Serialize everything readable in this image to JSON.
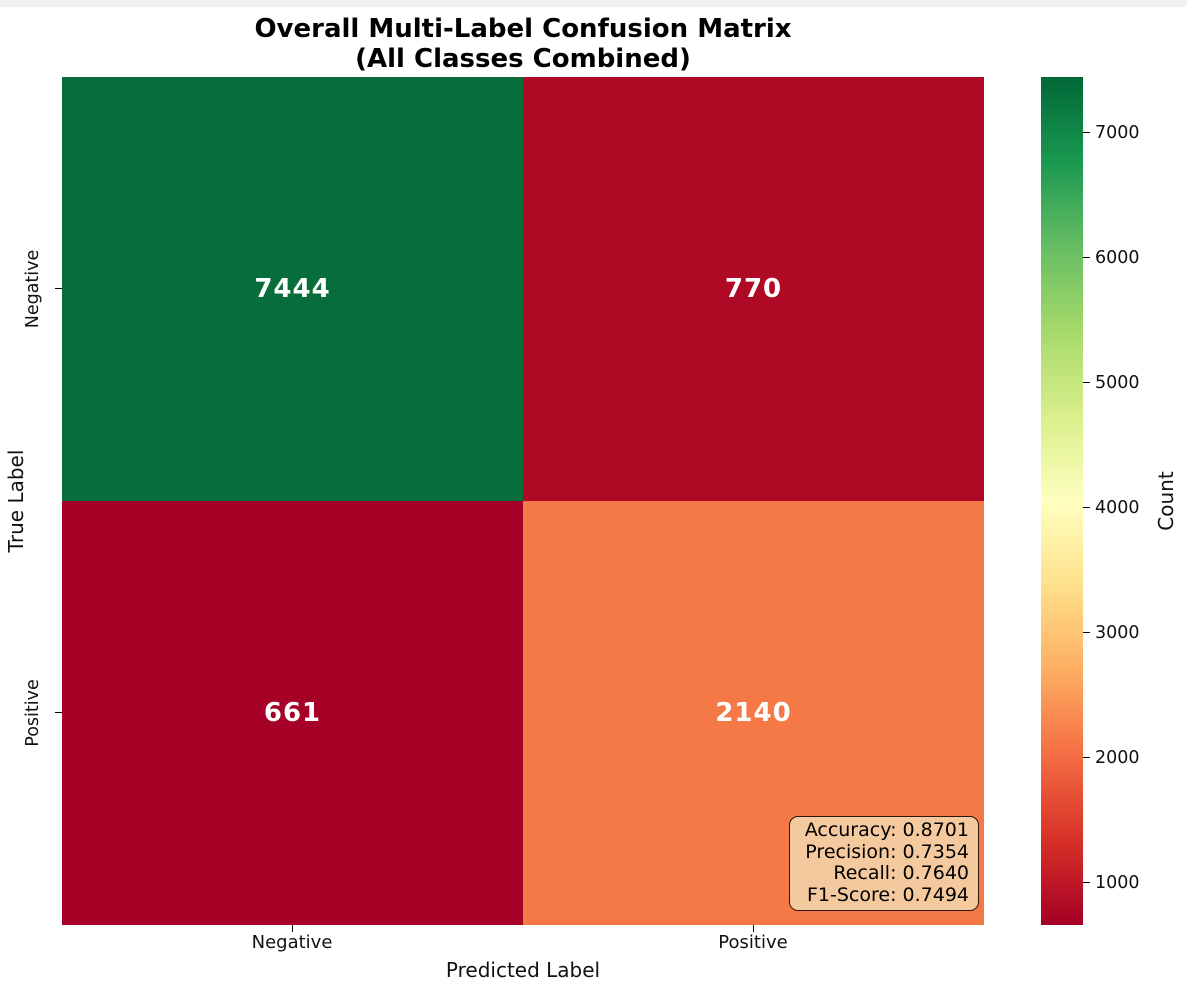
{
  "window": {
    "top_strip_color": "#f1f0ee",
    "background": "#ffffff"
  },
  "chart_data": {
    "type": "heatmap",
    "title": "Overall Multi-Label Confusion Matrix (All Classes Combined)",
    "title_line1": "Overall Multi-Label Confusion Matrix",
    "title_line2": "(All Classes Combined)",
    "xlabel": "Predicted Label",
    "ylabel": "True Label",
    "x_ticklabels": [
      "Negative",
      "Positive"
    ],
    "y_ticklabels": [
      "Negative",
      "Positive"
    ],
    "matrix": [
      [
        7444,
        770
      ],
      [
        661,
        2140
      ]
    ],
    "cell_colors": [
      [
        "#076d3a",
        "#af0926"
      ],
      [
        "#a50026",
        "#f57847"
      ]
    ],
    "annotation_color": "#ffffff",
    "value_range": [
      661,
      7444
    ],
    "colormap": "RdYlGn",
    "colormap_stops": [
      "#a50026",
      "#d73027",
      "#f46d43",
      "#fdae61",
      "#fee08b",
      "#ffffbf",
      "#d9ef8b",
      "#a6d96a",
      "#66bd63",
      "#1a9850",
      "#006837"
    ],
    "colorbar": {
      "label": "Count",
      "ticks": [
        1000,
        2000,
        3000,
        4000,
        5000,
        6000,
        7000
      ]
    },
    "stats_box": {
      "lines": [
        "Accuracy: 0.8701",
        "Precision: 0.7354",
        "Recall: 0.7640",
        "F1-Score: 0.7494"
      ],
      "facecolor": "#f5c99e",
      "edgecolor": "#2a160c"
    }
  }
}
